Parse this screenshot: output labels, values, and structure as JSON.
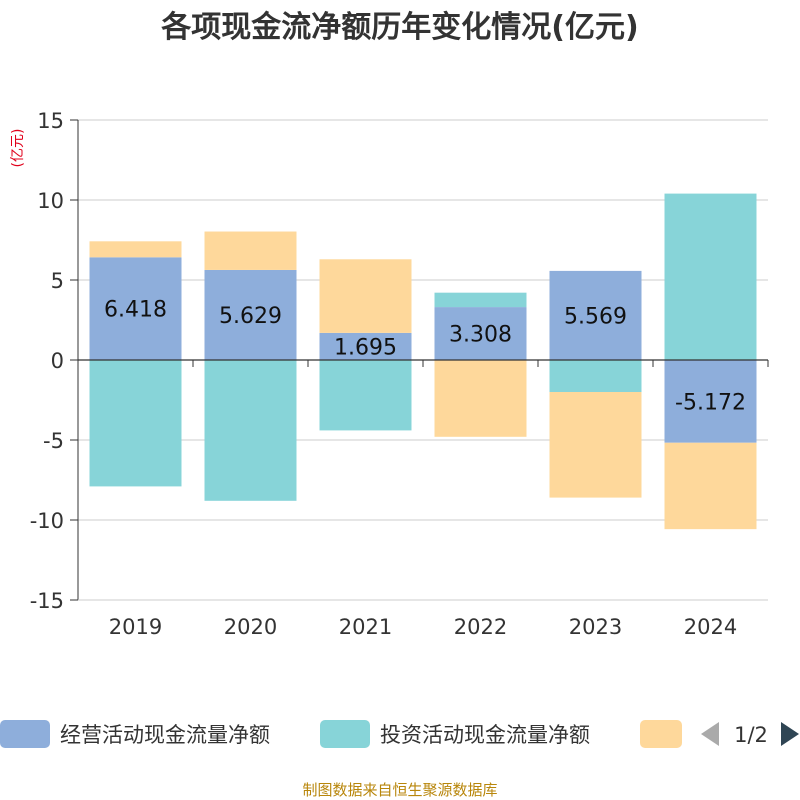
{
  "chart_data": {
    "type": "bar",
    "stacked": true,
    "title": "各项现金流净额历年变化情况(亿元)",
    "ylabel": "(亿元)",
    "categories": [
      "2019",
      "2020",
      "2021",
      "2022",
      "2023",
      "2024"
    ],
    "ylim": [
      -15,
      15
    ],
    "yticks": [
      15,
      10,
      5,
      0,
      -5,
      -10,
      -15
    ],
    "grid": true,
    "series": [
      {
        "name": "经营活动现金流量净额",
        "color": "#8eaedb",
        "values": [
          6.418,
          5.629,
          1.695,
          3.308,
          5.569,
          -5.172
        ],
        "labels": [
          "6.418",
          "5.629",
          "1.695",
          "3.308",
          "5.569",
          "-5.172"
        ]
      },
      {
        "name": "投资活动现金流量净额",
        "color": "#87d4d8",
        "values": [
          -7.9,
          -8.8,
          -4.4,
          0.9,
          -2.0,
          10.4
        ]
      },
      {
        "name": "",
        "color": "#fed89b",
        "values": [
          1.0,
          2.4,
          4.6,
          -4.8,
          -6.6,
          -5.4
        ]
      }
    ],
    "legend": {
      "position": "bottom",
      "page": "1/2"
    }
  },
  "footer": "制图数据来自恒生聚源数据库"
}
